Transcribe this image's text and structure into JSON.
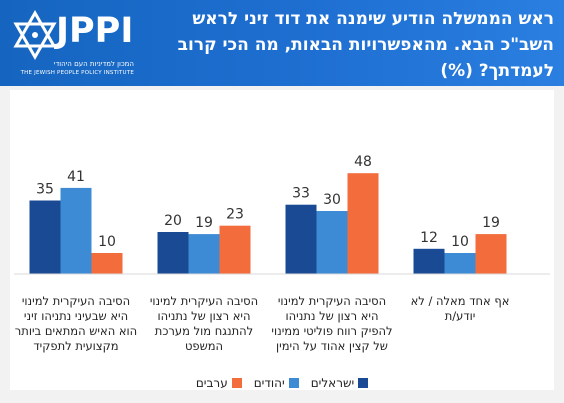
{
  "header": {
    "title": "ראש הממשלה הודיע שימנה את דוד זיני לראש השב\"כ הבא. מהאפשרויות הבאות, מה הכי קרוב לעמדתך? (%)",
    "logo_text": "JPPI",
    "logo_sub_he": "המכון למדיניות העם היהודי",
    "logo_sub_en": "THE JEWISH PEOPLE POLICY INSTITUTE",
    "bg_color": "#1565c0"
  },
  "chart_data": {
    "type": "bar",
    "title": "ראש הממשלה הודיע שימנה את דוד זיני לראש השב\"כ הבא. מהאפשרויות הבאות, מה הכי קרוב לעמדתך? (%)",
    "categories": [
      "הסיבה העיקרית למינוי היא שבעיני נתניהו זיני הוא האיש המתאים ביותר מקצועית לתפקיד",
      "הסיבה העיקרית למינוי היא רצון של נתניהו להתנגח מול מערכת המשפט",
      "הסיבה העיקרית למינוי היא רצון של נתניהו להפיק רווח פוליטי ממינוי של קצין אהוד על הימין",
      "אף אחד מאלה / לא יודע/ת"
    ],
    "series": [
      {
        "name": "ישראלים",
        "color": "#1b4a94",
        "values": [
          35,
          20,
          33,
          12
        ]
      },
      {
        "name": "יהודים",
        "color": "#3d8bd4",
        "values": [
          41,
          19,
          30,
          10
        ]
      },
      {
        "name": "ערבים",
        "color": "#f26c3c",
        "values": [
          10,
          23,
          48,
          19
        ]
      }
    ],
    "ylim": [
      0,
      50
    ],
    "grid": false,
    "legend_position": "bottom"
  }
}
